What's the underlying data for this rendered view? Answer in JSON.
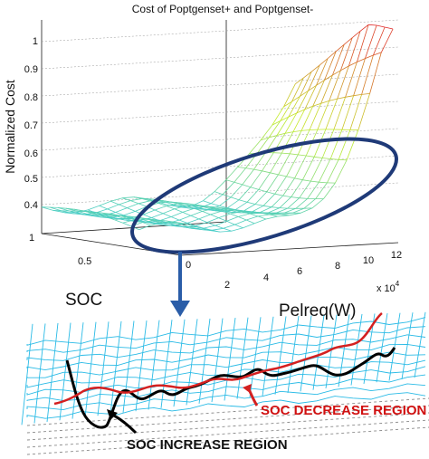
{
  "chart_data": {
    "type": "surface",
    "title": "Cost of Poptgenset+ and Poptgenset-",
    "zlabel": "Normalized Cost",
    "xlabel": "Pelreq(W)",
    "x_multiplier": "x 10",
    "x_multiplier_exp": "4",
    "ylabel": "SOC",
    "z_ticks": [
      "1",
      "0.9",
      "0.8",
      "0.7",
      "0.6",
      "0.5",
      "0.4"
    ],
    "x_ticks": [
      "0",
      "2",
      "4",
      "6",
      "8",
      "10",
      "12"
    ],
    "y_ticks": [
      "1",
      "0.5"
    ],
    "zlim": [
      0.35,
      1
    ],
    "xlim": [
      0,
      12
    ],
    "ylim": [
      0,
      1
    ],
    "grid": true
  },
  "inset": {
    "soc_label": "SOC",
    "pelreq_label": "Pelreq(W)",
    "decrease_region_label": "SOC DECREASE REGION",
    "increase_region_label": "SOC INCREASE REGION"
  },
  "colors": {
    "ellipse": "#1f3a78",
    "arrow": "#2a5da8",
    "decrease_line": "#d42020",
    "increase_line": "#000000",
    "decrease_text": "#d01010",
    "mesh_low": "#2ec6ea",
    "mesh_mid": "#c6ec2c",
    "mesh_high": "#e02828"
  }
}
